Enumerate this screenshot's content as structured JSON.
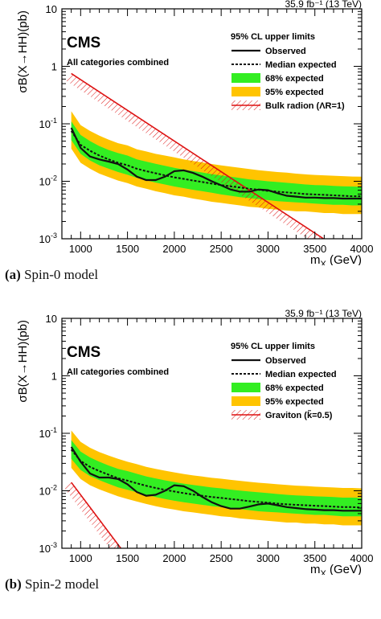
{
  "figure": {
    "captions": [
      {
        "tag": "(a)",
        "text": "Spin-0 model"
      },
      {
        "tag": "(b)",
        "text": "Spin-2 model"
      }
    ]
  },
  "colors": {
    "band95": "#ffc400",
    "band68": "#33ee22",
    "observed": "#111111",
    "expected": "#111111",
    "theory": "#dd1111"
  },
  "chart_data": [
    {
      "type": "line",
      "panel": "a",
      "lumi_label": "35.9 fb⁻¹ (13 TeV)",
      "experiment": "CMS",
      "subtitle": "All categories combined",
      "ylabel": "σB(X→HH)(pb)",
      "xlabel": "m_X (GeV)",
      "xlim": [
        800,
        4000
      ],
      "ylim": [
        0.001,
        10
      ],
      "yscale": "log",
      "xticks": [
        1000,
        1500,
        2000,
        2500,
        3000,
        3500,
        4000
      ],
      "yticks": [
        {
          "v": 0.001,
          "base": "10",
          "exp": "-3"
        },
        {
          "v": 0.01,
          "base": "10",
          "exp": "-2"
        },
        {
          "v": 0.1,
          "base": "10",
          "exp": "-1"
        },
        {
          "v": 1,
          "base": "1",
          "exp": ""
        },
        {
          "v": 10,
          "base": "10",
          "exp": ""
        }
      ],
      "legend": {
        "header": "95% CL upper limits",
        "entries": [
          "Observed",
          "Median expected",
          "68% expected",
          "95% expected",
          "Bulk radion (Λ_R=1)"
        ]
      },
      "x": [
        900,
        1000,
        1100,
        1200,
        1300,
        1400,
        1500,
        1600,
        1700,
        1800,
        1900,
        2000,
        2100,
        2200,
        2300,
        2400,
        2500,
        2600,
        2700,
        2800,
        2900,
        3000,
        3100,
        3200,
        3300,
        3400,
        3500,
        3600,
        3700,
        3800,
        3900,
        4000
      ],
      "series": [
        {
          "name": "Observed",
          "values": [
            0.085,
            0.038,
            0.027,
            0.024,
            0.022,
            0.02,
            0.016,
            0.012,
            0.0105,
            0.0105,
            0.012,
            0.015,
            0.0155,
            0.014,
            0.012,
            0.01,
            0.0085,
            0.0072,
            0.0066,
            0.0066,
            0.0072,
            0.007,
            0.0062,
            0.0056,
            0.0054,
            0.0052,
            0.0052,
            0.0051,
            0.0051,
            0.005,
            0.005,
            0.005
          ]
        },
        {
          "name": "Median expected",
          "values": [
            0.075,
            0.043,
            0.034,
            0.028,
            0.024,
            0.021,
            0.019,
            0.0165,
            0.015,
            0.0138,
            0.0127,
            0.0117,
            0.011,
            0.0103,
            0.0097,
            0.0091,
            0.0086,
            0.0082,
            0.0078,
            0.0074,
            0.0071,
            0.0068,
            0.0066,
            0.0064,
            0.0062,
            0.006,
            0.0059,
            0.0058,
            0.0057,
            0.0056,
            0.0055,
            0.0055
          ]
        },
        {
          "name": "68% expected",
          "lower": [
            0.052,
            0.03,
            0.023,
            0.019,
            0.0165,
            0.0145,
            0.013,
            0.0115,
            0.0104,
            0.0095,
            0.0088,
            0.0081,
            0.0076,
            0.0071,
            0.0067,
            0.0063,
            0.0059,
            0.0056,
            0.0053,
            0.0051,
            0.0049,
            0.0047,
            0.0045,
            0.0044,
            0.0043,
            0.0042,
            0.0041,
            0.004,
            0.0039,
            0.0039,
            0.0038,
            0.0038
          ],
          "upper": [
            0.11,
            0.064,
            0.05,
            0.041,
            0.035,
            0.031,
            0.028,
            0.024,
            0.022,
            0.0202,
            0.0186,
            0.0171,
            0.016,
            0.0151,
            0.0142,
            0.0133,
            0.0126,
            0.012,
            0.0114,
            0.0108,
            0.0104,
            0.01,
            0.0097,
            0.0094,
            0.0091,
            0.0088,
            0.0086,
            0.0085,
            0.0083,
            0.0082,
            0.0081,
            0.008
          ]
        },
        {
          "name": "95% expected",
          "lower": [
            0.037,
            0.021,
            0.0165,
            0.0136,
            0.0118,
            0.0103,
            0.0093,
            0.0081,
            0.0074,
            0.0067,
            0.0062,
            0.0057,
            0.0054,
            0.005,
            0.0047,
            0.0044,
            0.0042,
            0.004,
            0.0038,
            0.0036,
            0.0035,
            0.0033,
            0.0032,
            0.0031,
            0.003,
            0.003,
            0.0029,
            0.0028,
            0.0028,
            0.0027,
            0.0027,
            0.0027
          ],
          "upper": [
            0.165,
            0.095,
            0.075,
            0.062,
            0.053,
            0.046,
            0.042,
            0.036,
            0.033,
            0.03,
            0.028,
            0.026,
            0.024,
            0.0226,
            0.0213,
            0.02,
            0.0189,
            0.018,
            0.0171,
            0.0163,
            0.0156,
            0.015,
            0.0145,
            0.0141,
            0.0136,
            0.0132,
            0.0129,
            0.0127,
            0.0125,
            0.0123,
            0.0121,
            0.012
          ]
        },
        {
          "name": "Bulk radion (Λ_R=1)",
          "x": [
            900,
            3800
          ],
          "values": [
            0.75,
            0.0006
          ]
        }
      ]
    },
    {
      "type": "line",
      "panel": "b",
      "lumi_label": "35.9 fb⁻¹ (13 TeV)",
      "experiment": "CMS",
      "subtitle": "All categories combined",
      "ylabel": "σB(X→HH)(pb)",
      "xlabel": "m_X (GeV)",
      "xlim": [
        800,
        4000
      ],
      "ylim": [
        0.001,
        10
      ],
      "yscale": "log",
      "xticks": [
        1000,
        1500,
        2000,
        2500,
        3000,
        3500,
        4000
      ],
      "yticks": [
        {
          "v": 0.001,
          "base": "10",
          "exp": "-3"
        },
        {
          "v": 0.01,
          "base": "10",
          "exp": "-2"
        },
        {
          "v": 0.1,
          "base": "10",
          "exp": "-1"
        },
        {
          "v": 1,
          "base": "1",
          "exp": ""
        },
        {
          "v": 10,
          "base": "10",
          "exp": ""
        }
      ],
      "legend": {
        "header": "95% CL upper limits",
        "entries": [
          "Observed",
          "Median expected",
          "68% expected",
          "95% expected",
          "Graviton (k̃=0.5)"
        ]
      },
      "x": [
        900,
        1000,
        1100,
        1200,
        1300,
        1400,
        1500,
        1600,
        1700,
        1800,
        1900,
        2000,
        2100,
        2200,
        2300,
        2400,
        2500,
        2600,
        2700,
        2800,
        2900,
        3000,
        3100,
        3200,
        3300,
        3400,
        3500,
        3600,
        3700,
        3800,
        3900,
        4000
      ],
      "series": [
        {
          "name": "Observed",
          "values": [
            0.058,
            0.032,
            0.02,
            0.017,
            0.017,
            0.016,
            0.013,
            0.0095,
            0.0082,
            0.0085,
            0.01,
            0.0125,
            0.012,
            0.01,
            0.0078,
            0.0063,
            0.0054,
            0.0049,
            0.0049,
            0.0053,
            0.0058,
            0.006,
            0.0056,
            0.0052,
            0.005,
            0.0048,
            0.0047,
            0.0046,
            0.0046,
            0.0045,
            0.0045,
            0.0045
          ]
        },
        {
          "name": "Median expected",
          "values": [
            0.052,
            0.033,
            0.026,
            0.022,
            0.019,
            0.0165,
            0.015,
            0.0135,
            0.0122,
            0.0112,
            0.0104,
            0.0097,
            0.0091,
            0.0086,
            0.0082,
            0.0078,
            0.0075,
            0.0072,
            0.0069,
            0.0066,
            0.0064,
            0.0062,
            0.006,
            0.0058,
            0.0057,
            0.0056,
            0.0055,
            0.0054,
            0.0053,
            0.0052,
            0.0052,
            0.0051
          ]
        },
        {
          "name": "68% expected",
          "lower": [
            0.036,
            0.023,
            0.018,
            0.0153,
            0.0132,
            0.0115,
            0.0104,
            0.0094,
            0.0085,
            0.0078,
            0.0072,
            0.0067,
            0.0063,
            0.006,
            0.0057,
            0.0054,
            0.0052,
            0.005,
            0.0048,
            0.0046,
            0.0044,
            0.0043,
            0.0042,
            0.0041,
            0.004,
            0.0039,
            0.0038,
            0.0038,
            0.0037,
            0.0036,
            0.0036,
            0.0036
          ],
          "upper": [
            0.076,
            0.048,
            0.038,
            0.032,
            0.0275,
            0.024,
            0.022,
            0.0197,
            0.0178,
            0.0164,
            0.0152,
            0.0142,
            0.0133,
            0.0126,
            0.012,
            0.0114,
            0.011,
            0.0105,
            0.0101,
            0.0097,
            0.0094,
            0.0091,
            0.0088,
            0.0085,
            0.0083,
            0.0082,
            0.008,
            0.0079,
            0.0078,
            0.0076,
            0.0076,
            0.0075
          ]
        },
        {
          "name": "95% expected",
          "lower": [
            0.025,
            0.016,
            0.0125,
            0.0106,
            0.0092,
            0.008,
            0.0072,
            0.0065,
            0.0059,
            0.0054,
            0.005,
            0.0047,
            0.0044,
            0.0042,
            0.004,
            0.0038,
            0.0036,
            0.0035,
            0.0033,
            0.0032,
            0.0031,
            0.003,
            0.0029,
            0.0028,
            0.0028,
            0.0027,
            0.0027,
            0.0026,
            0.0026,
            0.0025,
            0.0025,
            0.0025
          ],
          "upper": [
            0.112,
            0.071,
            0.056,
            0.047,
            0.041,
            0.036,
            0.032,
            0.029,
            0.026,
            0.024,
            0.0224,
            0.0209,
            0.0196,
            0.0185,
            0.0177,
            0.0168,
            0.0162,
            0.0155,
            0.0149,
            0.0143,
            0.0138,
            0.0134,
            0.013,
            0.0126,
            0.0123,
            0.0121,
            0.0118,
            0.0116,
            0.0114,
            0.0112,
            0.0112,
            0.011
          ]
        },
        {
          "name": "Graviton (k̃=0.5)",
          "x": [
            900,
            1450
          ],
          "values": [
            0.014,
            0.0009
          ]
        }
      ]
    }
  ]
}
